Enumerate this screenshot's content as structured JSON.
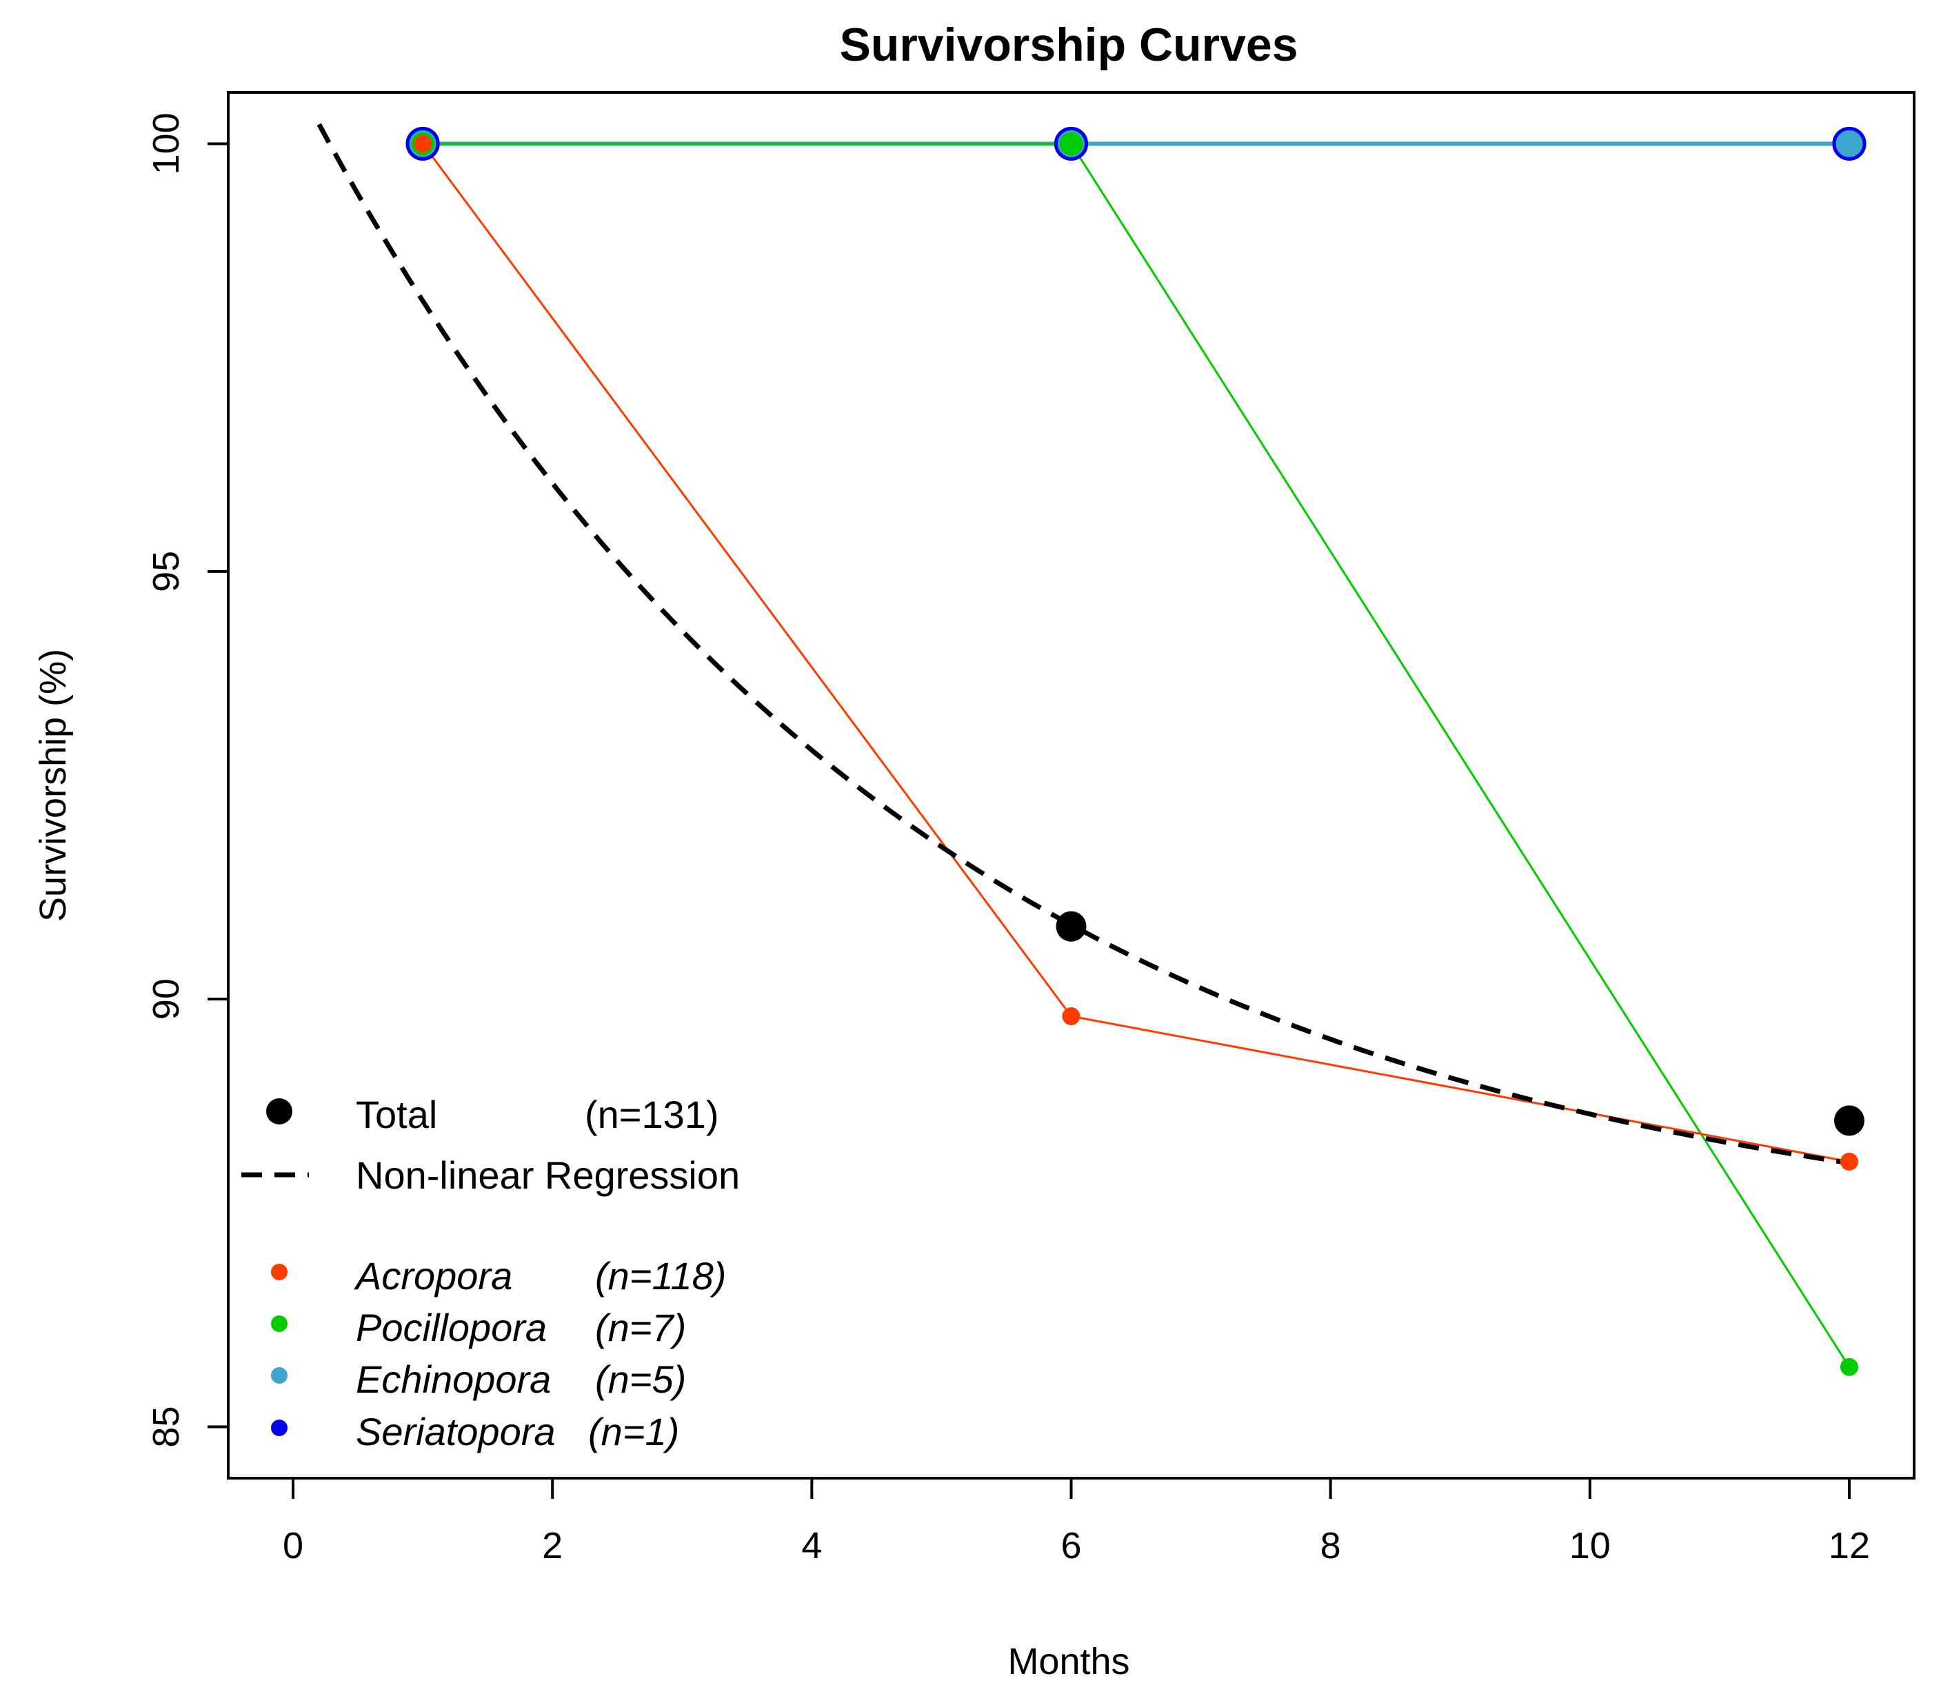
{
  "chart_data": {
    "type": "line",
    "title": "Survivorship Curves",
    "xlabel": "Months",
    "ylabel": "Survivorship (%)",
    "xlim": [
      -0.5,
      12.5
    ],
    "ylim": [
      84.4,
      100.6
    ],
    "xticks": [
      0,
      2,
      4,
      6,
      8,
      10,
      12
    ],
    "yticks": [
      85,
      90,
      95,
      100
    ],
    "series": [
      {
        "name": "Seriatopora",
        "n_label": "(n=1)",
        "color": "#0000ee",
        "x": [
          1,
          6,
          12
        ],
        "y": [
          100,
          100,
          100
        ],
        "marker": "large"
      },
      {
        "name": "Echinopora",
        "n_label": "(n=5)",
        "color": "#3fa5cc",
        "x": [
          1,
          6,
          12
        ],
        "y": [
          100,
          100,
          100
        ],
        "marker": "large"
      },
      {
        "name": "Pocillopora",
        "n_label": "(n=7)",
        "color": "#00cc00",
        "x": [
          1,
          6,
          12
        ],
        "y": [
          100,
          100,
          85.7
        ],
        "marker": "small"
      },
      {
        "name": "Acropora",
        "n_label": "(n=118)",
        "color": "#ff3b00",
        "x": [
          1,
          6,
          12
        ],
        "y": [
          100,
          89.8,
          88.1
        ],
        "marker": "small"
      }
    ],
    "total": {
      "name": "Total",
      "n_label": "(n=131)",
      "color": "#000000",
      "x": [
        6,
        12
      ],
      "y": [
        90.85,
        88.58
      ]
    },
    "regression": {
      "name": "Non-linear Regression",
      "color": "#000000",
      "asymptote": 87.0,
      "amplitude": 13.8,
      "rate": 0.212,
      "x_start": 0.2,
      "x_end": 12
    }
  }
}
